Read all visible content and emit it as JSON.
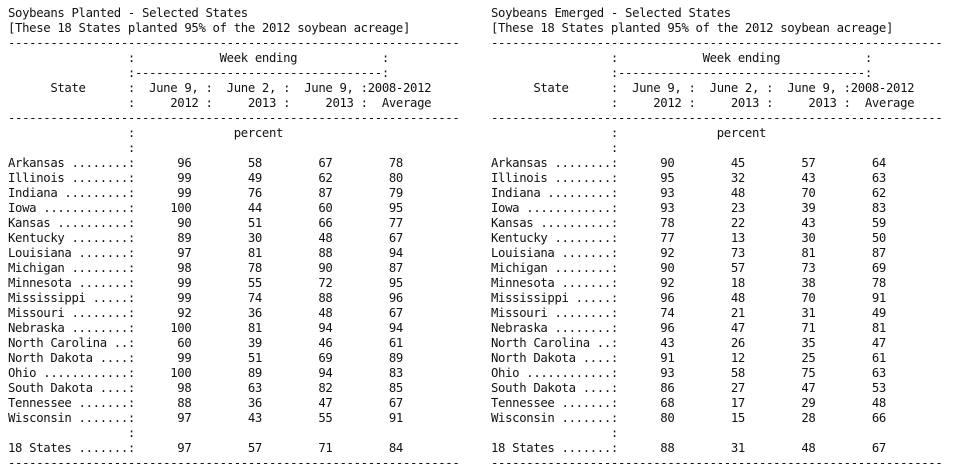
{
  "reports": [
    {
      "title": "Soybeans Planted - Selected States",
      "subtitle": "[These 18 States planted 95% of the 2012 soybean acreage]",
      "header": {
        "state": "State",
        "week_ending": "Week ending",
        "unit": "percent",
        "columns": [
          [
            "June 9,",
            "2012"
          ],
          [
            "June 2,",
            "2013"
          ],
          [
            "June 9,",
            "2013"
          ],
          [
            "2008-2012",
            "Average"
          ]
        ]
      },
      "rows": [
        {
          "state": "Arkansas",
          "values": [
            "96",
            "58",
            "67",
            "78"
          ]
        },
        {
          "state": "Illinois",
          "values": [
            "99",
            "49",
            "62",
            "80"
          ]
        },
        {
          "state": "Indiana",
          "values": [
            "99",
            "76",
            "87",
            "79"
          ]
        },
        {
          "state": "Iowa",
          "values": [
            "100",
            "44",
            "60",
            "95"
          ]
        },
        {
          "state": "Kansas",
          "values": [
            "90",
            "51",
            "66",
            "77"
          ]
        },
        {
          "state": "Kentucky",
          "values": [
            "89",
            "30",
            "48",
            "67"
          ]
        },
        {
          "state": "Louisiana",
          "values": [
            "97",
            "81",
            "88",
            "94"
          ]
        },
        {
          "state": "Michigan",
          "values": [
            "98",
            "78",
            "90",
            "87"
          ]
        },
        {
          "state": "Minnesota",
          "values": [
            "99",
            "55",
            "72",
            "95"
          ]
        },
        {
          "state": "Mississippi",
          "values": [
            "99",
            "74",
            "88",
            "96"
          ]
        },
        {
          "state": "Missouri",
          "values": [
            "92",
            "36",
            "48",
            "67"
          ]
        },
        {
          "state": "Nebraska",
          "values": [
            "100",
            "81",
            "94",
            "94"
          ]
        },
        {
          "state": "North Carolina",
          "values": [
            "60",
            "39",
            "46",
            "61"
          ]
        },
        {
          "state": "North Dakota",
          "values": [
            "99",
            "51",
            "69",
            "89"
          ]
        },
        {
          "state": "Ohio",
          "values": [
            "100",
            "89",
            "94",
            "83"
          ]
        },
        {
          "state": "South Dakota",
          "values": [
            "98",
            "63",
            "82",
            "85"
          ]
        },
        {
          "state": "Tennessee",
          "values": [
            "88",
            "36",
            "47",
            "67"
          ]
        },
        {
          "state": "Wisconsin",
          "values": [
            "97",
            "43",
            "55",
            "91"
          ]
        }
      ],
      "total": {
        "state": "18 States",
        "values": [
          "97",
          "57",
          "71",
          "84"
        ]
      }
    },
    {
      "title": "Soybeans Emerged - Selected States",
      "subtitle": "[These 18 States planted 95% of the 2012 soybean acreage]",
      "header": {
        "state": "State",
        "week_ending": "Week ending",
        "unit": "percent",
        "columns": [
          [
            "June 9,",
            "2012"
          ],
          [
            "June 2,",
            "2013"
          ],
          [
            "June 9,",
            "2013"
          ],
          [
            "2008-2012",
            "Average"
          ]
        ]
      },
      "rows": [
        {
          "state": "Arkansas",
          "values": [
            "90",
            "45",
            "57",
            "64"
          ]
        },
        {
          "state": "Illinois",
          "values": [
            "95",
            "32",
            "43",
            "63"
          ]
        },
        {
          "state": "Indiana",
          "values": [
            "93",
            "48",
            "70",
            "62"
          ]
        },
        {
          "state": "Iowa",
          "values": [
            "93",
            "23",
            "39",
            "83"
          ]
        },
        {
          "state": "Kansas",
          "values": [
            "78",
            "22",
            "43",
            "59"
          ]
        },
        {
          "state": "Kentucky",
          "values": [
            "77",
            "13",
            "30",
            "50"
          ]
        },
        {
          "state": "Louisiana",
          "values": [
            "92",
            "73",
            "81",
            "87"
          ]
        },
        {
          "state": "Michigan",
          "values": [
            "90",
            "57",
            "73",
            "69"
          ]
        },
        {
          "state": "Minnesota",
          "values": [
            "92",
            "18",
            "38",
            "78"
          ]
        },
        {
          "state": "Mississippi",
          "values": [
            "96",
            "48",
            "70",
            "91"
          ]
        },
        {
          "state": "Missouri",
          "values": [
            "74",
            "21",
            "31",
            "49"
          ]
        },
        {
          "state": "Nebraska",
          "values": [
            "96",
            "47",
            "71",
            "81"
          ]
        },
        {
          "state": "North Carolina",
          "values": [
            "43",
            "26",
            "35",
            "47"
          ]
        },
        {
          "state": "North Dakota",
          "values": [
            "91",
            "12",
            "25",
            "61"
          ]
        },
        {
          "state": "Ohio",
          "values": [
            "93",
            "58",
            "75",
            "63"
          ]
        },
        {
          "state": "South Dakota",
          "values": [
            "86",
            "27",
            "47",
            "53"
          ]
        },
        {
          "state": "Tennessee",
          "values": [
            "68",
            "17",
            "29",
            "48"
          ]
        },
        {
          "state": "Wisconsin",
          "values": [
            "80",
            "15",
            "28",
            "66"
          ]
        }
      ],
      "total": {
        "state": "18 States",
        "values": [
          "88",
          "31",
          "48",
          "67"
        ]
      }
    }
  ]
}
